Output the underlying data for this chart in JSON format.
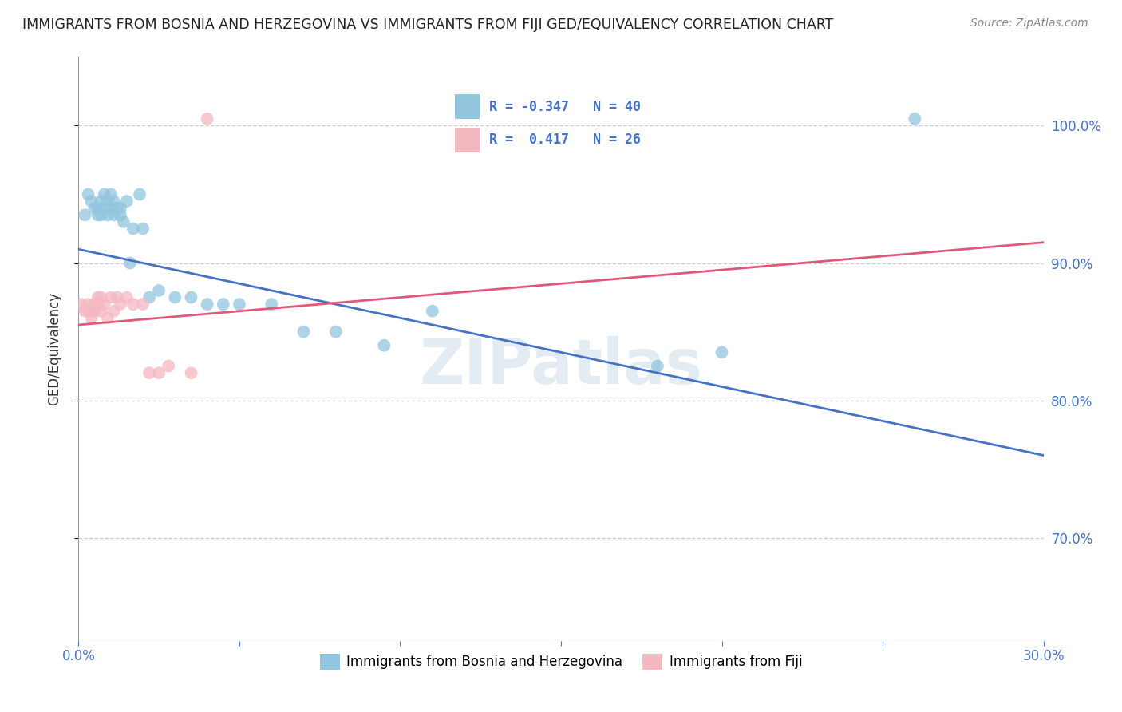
{
  "title": "IMMIGRANTS FROM BOSNIA AND HERZEGOVINA VS IMMIGRANTS FROM FIJI GED/EQUIVALENCY CORRELATION CHART",
  "source": "Source: ZipAtlas.com",
  "ylabel": "GED/Equivalency",
  "xlim": [
    0.0,
    0.3
  ],
  "ylim": [
    0.625,
    1.05
  ],
  "y_ticks": [
    0.7,
    0.8,
    0.9,
    1.0
  ],
  "y_tick_labels": [
    "70.0%",
    "80.0%",
    "90.0%",
    "100.0%"
  ],
  "blue_color": "#92c5de",
  "pink_color": "#f4b8c1",
  "blue_line_color": "#4472c4",
  "pink_line_color": "#e05878",
  "R_blue": -0.347,
  "N_blue": 40,
  "R_pink": 0.417,
  "N_pink": 26,
  "watermark": "ZIPatlas",
  "legend_label_blue": "Immigrants from Bosnia and Herzegovina",
  "legend_label_pink": "Immigrants from Fiji",
  "blue_scatter_x": [
    0.002,
    0.003,
    0.004,
    0.005,
    0.006,
    0.006,
    0.007,
    0.007,
    0.008,
    0.008,
    0.009,
    0.009,
    0.01,
    0.01,
    0.011,
    0.011,
    0.012,
    0.013,
    0.013,
    0.014,
    0.015,
    0.016,
    0.017,
    0.019,
    0.02,
    0.022,
    0.025,
    0.03,
    0.035,
    0.04,
    0.045,
    0.05,
    0.06,
    0.07,
    0.08,
    0.095,
    0.11,
    0.18,
    0.2,
    0.26
  ],
  "blue_scatter_y": [
    0.935,
    0.95,
    0.945,
    0.94,
    0.94,
    0.935,
    0.945,
    0.935,
    0.95,
    0.94,
    0.945,
    0.935,
    0.95,
    0.94,
    0.945,
    0.935,
    0.94,
    0.94,
    0.935,
    0.93,
    0.945,
    0.9,
    0.925,
    0.95,
    0.925,
    0.875,
    0.88,
    0.875,
    0.875,
    0.87,
    0.87,
    0.87,
    0.87,
    0.85,
    0.85,
    0.84,
    0.865,
    0.825,
    0.835,
    1.005
  ],
  "pink_scatter_x": [
    0.001,
    0.002,
    0.003,
    0.003,
    0.004,
    0.004,
    0.005,
    0.005,
    0.006,
    0.006,
    0.007,
    0.007,
    0.008,
    0.009,
    0.01,
    0.011,
    0.012,
    0.013,
    0.015,
    0.017,
    0.02,
    0.022,
    0.025,
    0.028,
    0.035,
    0.04
  ],
  "pink_scatter_y": [
    0.87,
    0.865,
    0.87,
    0.865,
    0.865,
    0.86,
    0.87,
    0.865,
    0.875,
    0.87,
    0.865,
    0.875,
    0.87,
    0.86,
    0.875,
    0.865,
    0.875,
    0.87,
    0.875,
    0.87,
    0.87,
    0.82,
    0.82,
    0.825,
    0.82,
    1.005
  ],
  "blue_line_x0": 0.0,
  "blue_line_y0": 0.91,
  "blue_line_x1": 0.3,
  "blue_line_y1": 0.76,
  "pink_line_x0": 0.0,
  "pink_line_y0": 0.855,
  "pink_line_x1": 0.3,
  "pink_line_y1": 0.915
}
